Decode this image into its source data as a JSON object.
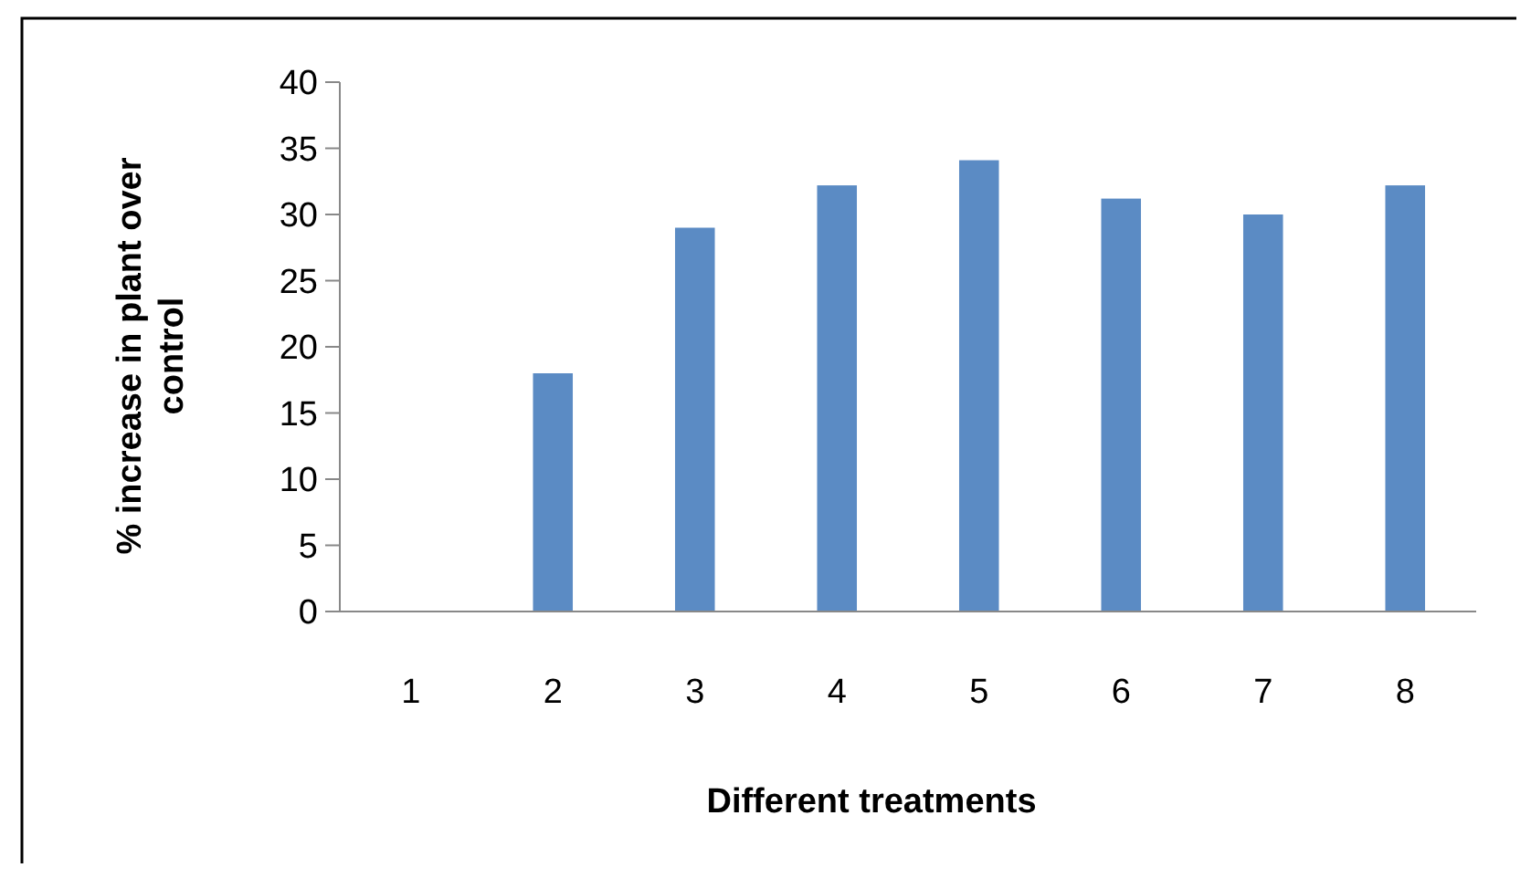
{
  "chart_data": {
    "type": "bar",
    "xlabel": "Different treatments",
    "ylabel": "% increase in plant over control",
    "categories": [
      "1",
      "2",
      "3",
      "4",
      "5",
      "6",
      "7",
      "8"
    ],
    "values": [
      0,
      18,
      29,
      32.2,
      34.1,
      31.2,
      30,
      32.2
    ],
    "color": "#5b8bc4",
    "ylim": [
      0,
      40
    ],
    "yticks": [
      0,
      5,
      10,
      15,
      20,
      25,
      30,
      35,
      40
    ],
    "grid": false
  }
}
